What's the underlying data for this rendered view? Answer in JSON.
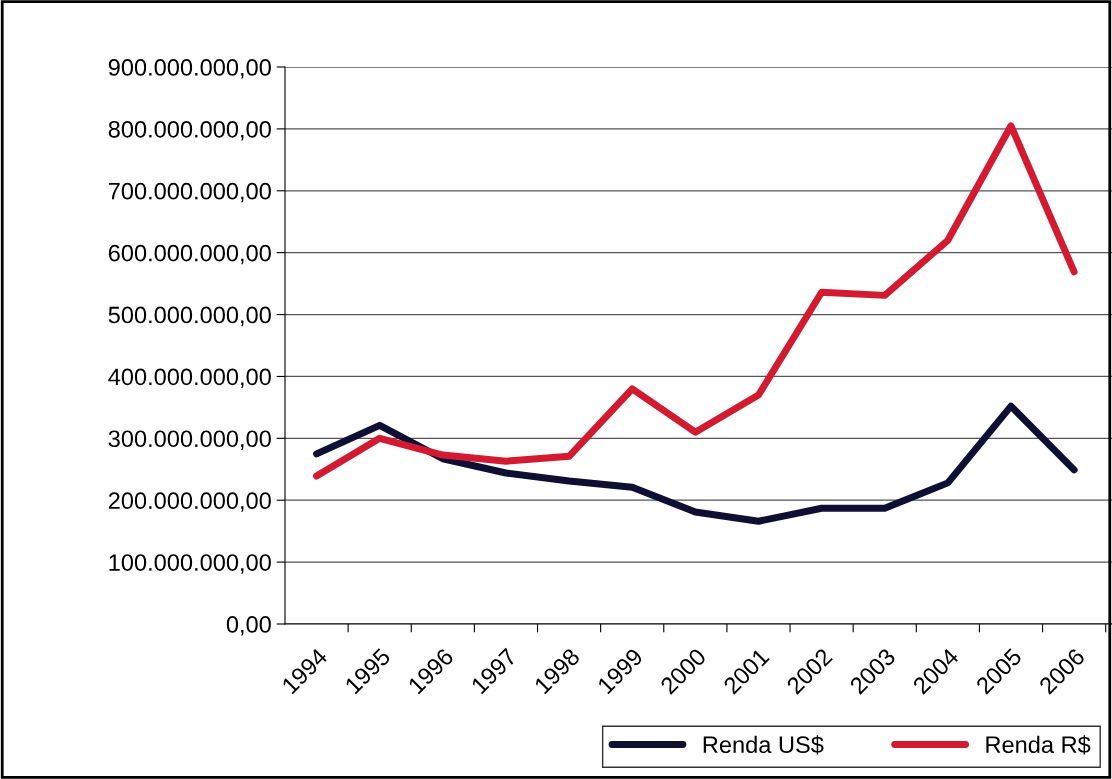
{
  "chart_data": {
    "type": "line",
    "categories": [
      "1994",
      "1995",
      "1996",
      "1997",
      "1998",
      "1999",
      "2000",
      "2001",
      "2002",
      "2003",
      "2004",
      "2005",
      "2006"
    ],
    "series": [
      {
        "name": "Renda US$",
        "color": "#0f0f33",
        "values": [
          275000000,
          321000000,
          267000000,
          244000000,
          231000000,
          221000000,
          181000000,
          166000000,
          187000000,
          187000000,
          228000000,
          352000000,
          249000000
        ]
      },
      {
        "name": "Renda R$",
        "color": "#d21a30",
        "values": [
          239000000,
          300000000,
          273000000,
          263000000,
          271000000,
          380000000,
          310000000,
          370000000,
          536000000,
          531000000,
          620000000,
          805000000,
          569000000
        ]
      }
    ],
    "ylim": [
      0,
      900000000
    ],
    "yticks": [
      {
        "value": 0,
        "label": "0,00"
      },
      {
        "value": 100000000,
        "label": "100.000.000,00"
      },
      {
        "value": 200000000,
        "label": "200.000.000,00"
      },
      {
        "value": 300000000,
        "label": "300.000.000,00"
      },
      {
        "value": 400000000,
        "label": "400.000.000,00"
      },
      {
        "value": 500000000,
        "label": "500.000.000,00"
      },
      {
        "value": 600000000,
        "label": "600.000.000,00"
      },
      {
        "value": 700000000,
        "label": "700.000.000,00"
      },
      {
        "value": 800000000,
        "label": "800.000.000,00"
      },
      {
        "value": 900000000,
        "label": "900.000.000,00"
      }
    ],
    "grid": "y",
    "legend": "bottom right",
    "marker": "none",
    "line_style": "solid"
  }
}
